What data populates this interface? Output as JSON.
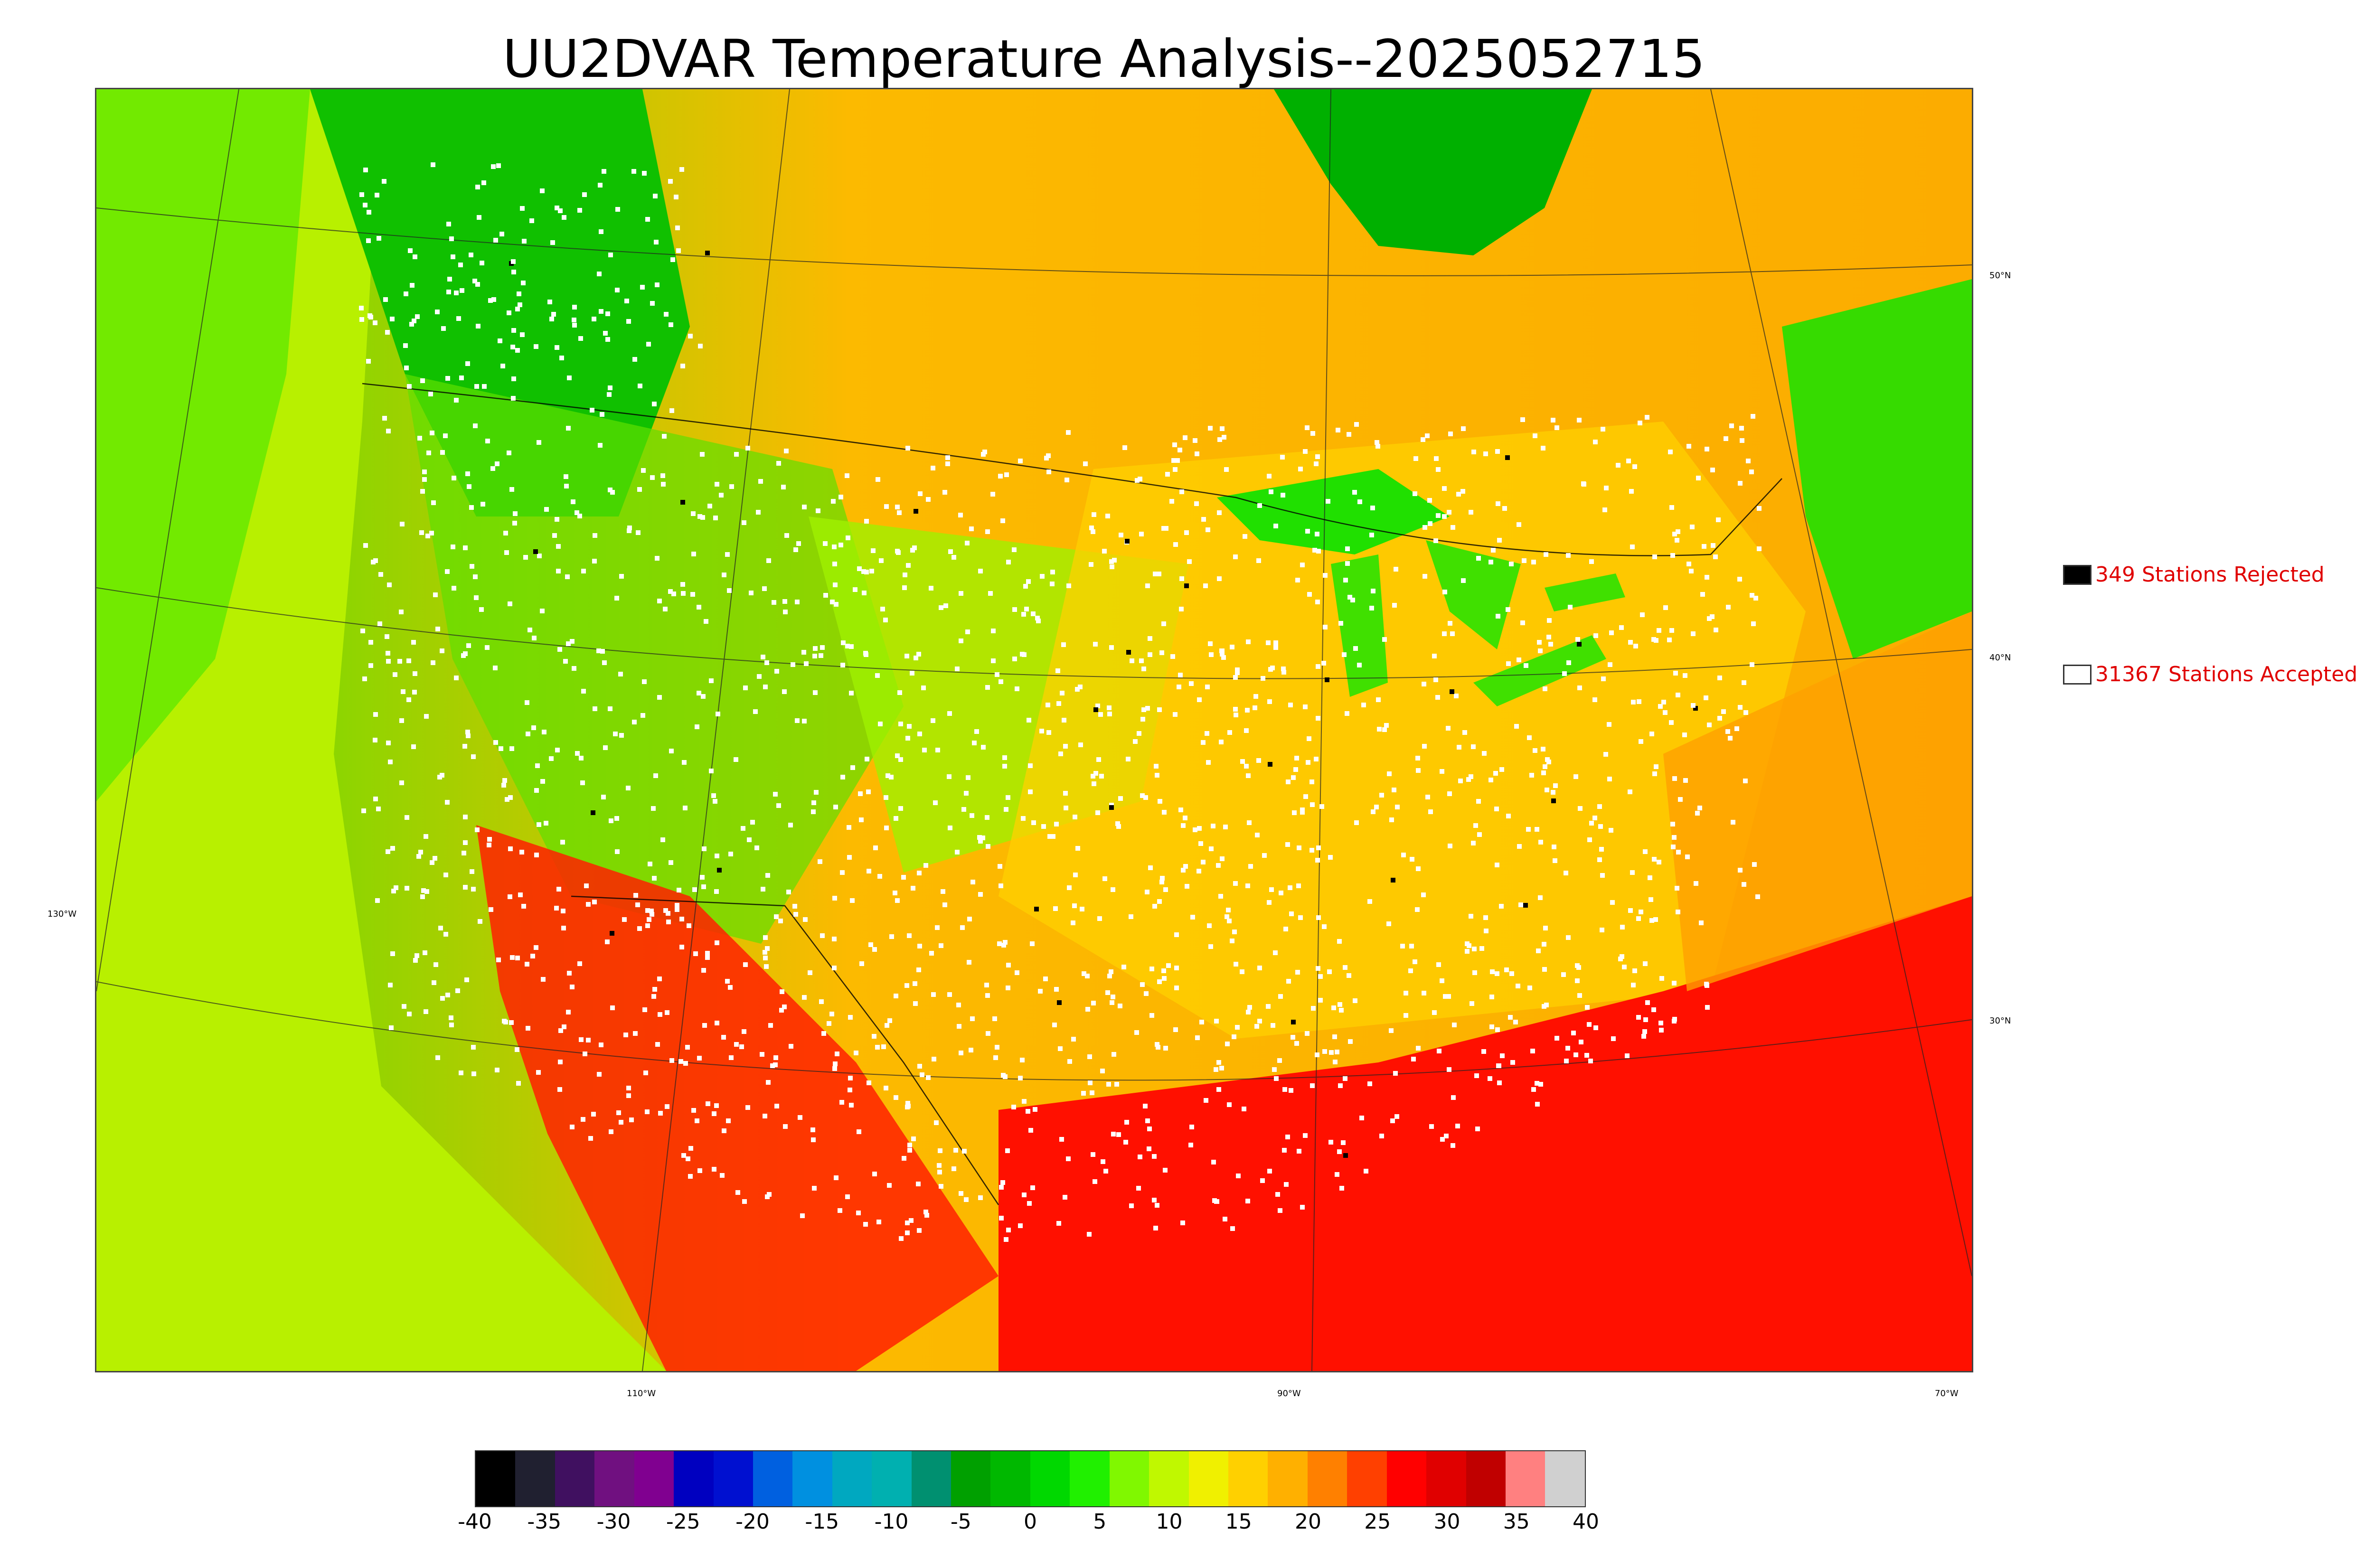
{
  "title": "UU2DVAR Temperature Analysis--2025052715",
  "graticule": {
    "lat_labels": [
      "50°N",
      "40°N",
      "30°N"
    ],
    "lon_labels": [
      "130°W",
      "110°W",
      "90°W",
      "70°W"
    ]
  },
  "legend": {
    "rejected": {
      "label": "349 Stations Rejected",
      "color": "#000000"
    },
    "accepted": {
      "label": "31367 Stations Accepted",
      "color": "#ffffff"
    }
  },
  "colorbar": {
    "units_min": -40,
    "units_max": 40,
    "ticks": [
      "-40",
      "-35",
      "-30",
      "-25",
      "-20",
      "-15",
      "-10",
      "-5",
      "0",
      "5",
      "10",
      "15",
      "20",
      "25",
      "30",
      "35",
      "40"
    ],
    "colors": [
      "#000000",
      "#202030",
      "#401060",
      "#701080",
      "#800090",
      "#0000c0",
      "#0010d0",
      "#0060e0",
      "#0090e0",
      "#00a8c0",
      "#00b0b0",
      "#009070",
      "#00a000",
      "#00b800",
      "#00d800",
      "#20f000",
      "#80f800",
      "#c0f800",
      "#f0f000",
      "#ffd000",
      "#ffb000",
      "#ff8000",
      "#ff4000",
      "#ff0000",
      "#e00000",
      "#c00000",
      "#ff8080",
      "#d0d0d0"
    ]
  },
  "stations": {
    "rejected_count": 349,
    "accepted_count": 31367
  }
}
